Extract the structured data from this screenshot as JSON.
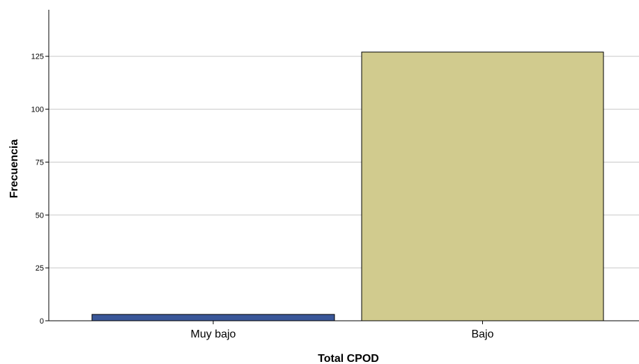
{
  "chart_data": {
    "type": "bar",
    "categories": [
      "Muy bajo",
      "Bajo"
    ],
    "values": [
      3,
      127
    ],
    "bar_colors": [
      "#3a5799",
      "#d1cb8e"
    ],
    "bar_stroke": "#000000",
    "title": "",
    "xlabel": "Total CPOD",
    "ylabel": "Frecuencia",
    "ylim": [
      0,
      147
    ],
    "yticks": [
      0,
      25,
      50,
      75,
      100,
      125
    ],
    "grid": true,
    "grid_color": "#c8c8c8"
  }
}
